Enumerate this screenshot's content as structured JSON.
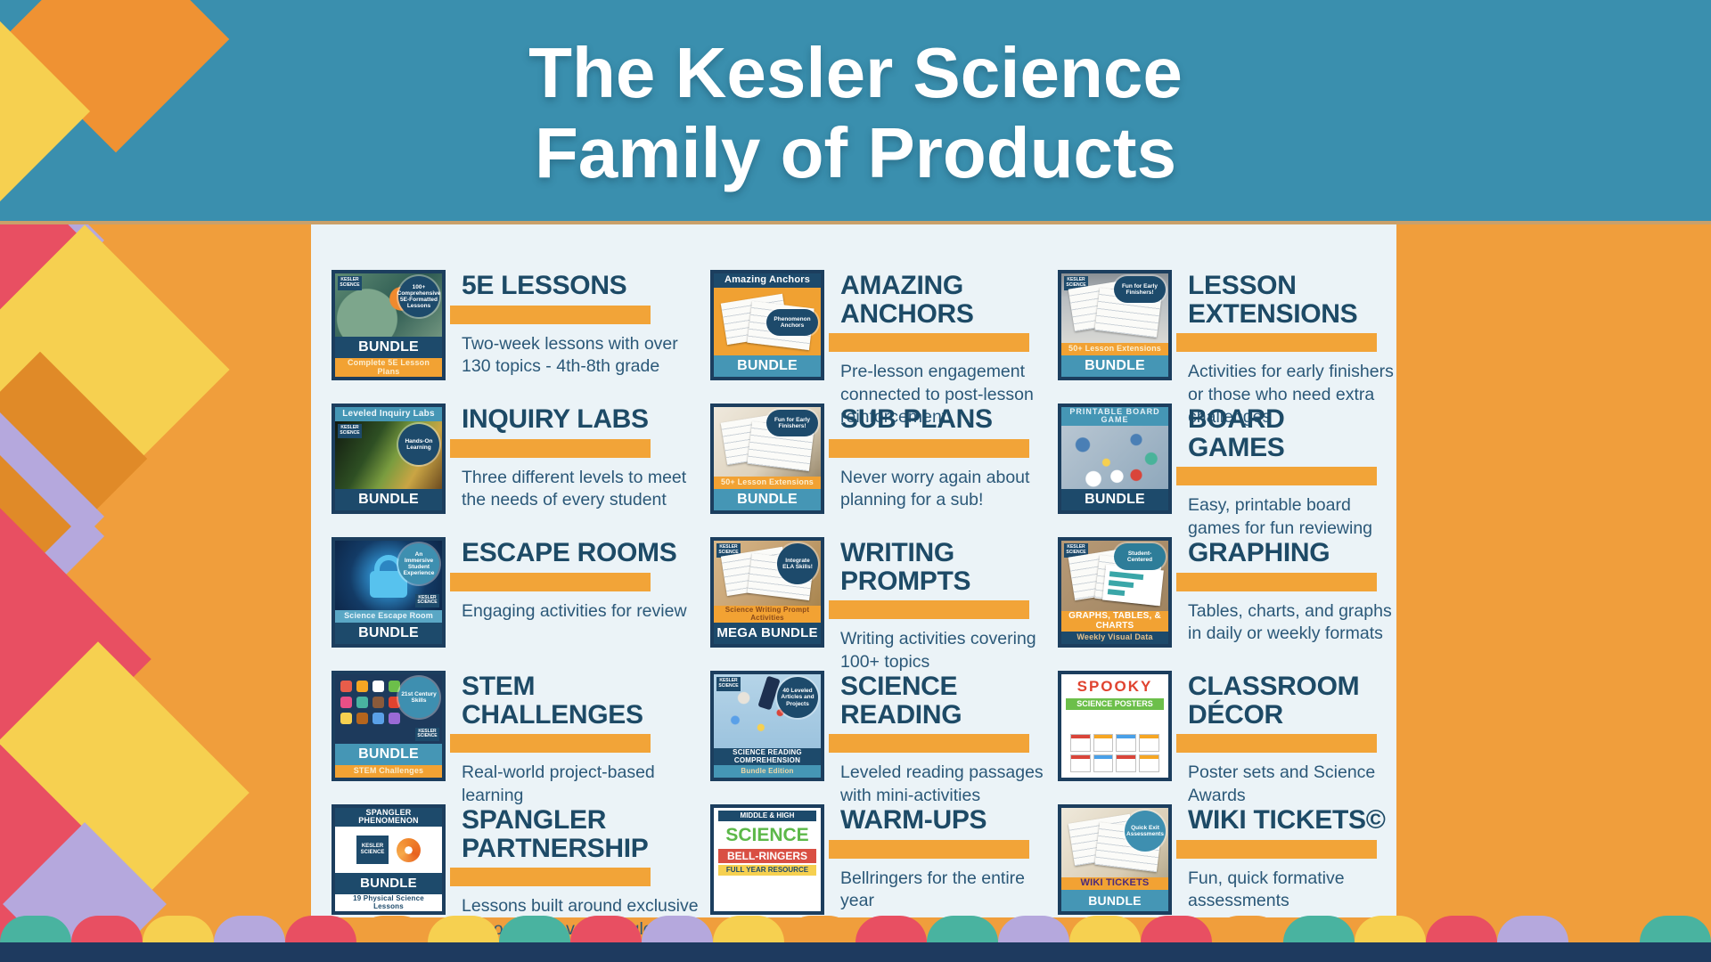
{
  "palette": {
    "header_bg": "#3a8fae",
    "page_bg": "#f09e3c",
    "panel_bg": "#ebf3f7",
    "card_title": "#1d4a66",
    "desc": "#2b5878",
    "accent_bar": "#f2a438",
    "card_border": "#1c3e5e",
    "navy": "#1d4a6b",
    "teal": "#4596b5",
    "bottom_bar": "#1e3a5f",
    "lavender": "#b5a8dd",
    "red": "#e84f62",
    "yellow": "#f6d050",
    "green": "#49b3a0"
  },
  "header": {
    "line1": "The Kesler Science",
    "line2": "Family of Products"
  },
  "products": [
    {
      "title": "5E LESSONS",
      "description": "Two-week lessons with over 130 topics - 4th-8th grade",
      "thumb": {
        "bg": "radial-gradient(circle at 62% 40%, #f08a2e 0 15%, rgba(0,0,0,0) 16%), radial-gradient(circle at 30% 72%, #7da68c 0 34%, rgba(0,0,0,0) 35%), linear-gradient(135deg, #5d8a73, #2e5b52 55%, #71957f)",
        "logo": "KESLER SCIENCE",
        "logo_pos": "tl",
        "badge": {
          "text": "100+ Comprehensive 5E-Formatted Lessons",
          "bg": "#1d4a6b",
          "color": "#ffffff",
          "shape": "circle",
          "pos": "tr"
        },
        "strips": [
          {
            "text": "BUNDLE",
            "bg": "#1d4a6b",
            "color": "#ffffff",
            "size": 16,
            "weight": 800
          },
          {
            "text": "Complete 5E Lesson Plans",
            "bg": "#f2a233",
            "color": "#fceecf",
            "size": 9,
            "weight": 600
          }
        ]
      }
    },
    {
      "title": "AMAZING\nANCHORS",
      "description": "Pre-lesson engagement connected to post-lesson reinforcement",
      "thumb": {
        "bg": "#f0a132",
        "papers": true,
        "header": {
          "text": "Amazing Anchors",
          "bg": "#1d4a6b",
          "color": "#ffffff",
          "size": 11,
          "weight": 700
        },
        "badge": {
          "text": "Phenomenon Anchors",
          "bg": "#1d4a6b",
          "color": "#ffffff",
          "shape": "oval",
          "pos": "r"
        },
        "strips": [
          {
            "text": "BUNDLE",
            "bg": "#4596b5",
            "color": "#ffffff",
            "size": 16,
            "weight": 800
          }
        ]
      }
    },
    {
      "title": "LESSON\nEXTENSIONS",
      "description": "Activities for early finishers or those who need extra challenges",
      "thumb": {
        "bg": "linear-gradient(180deg,#8a8f94,#b9bec2 35%,#d8d8d4)",
        "papers": true,
        "logo": "KESLER SCIENCE",
        "logo_pos": "tl",
        "badge": {
          "text": "Fun for Early Finishers!",
          "bg": "#1d4a6b",
          "color": "#ffffff",
          "shape": "oval",
          "pos": "tr"
        },
        "strips": [
          {
            "text": "50+ Lesson Extensions",
            "bg": "#f2a233",
            "color": "#fceecf",
            "size": 9,
            "weight": 600
          },
          {
            "text": "BUNDLE",
            "bg": "#4596b5",
            "color": "#ffffff",
            "size": 16,
            "weight": 800
          }
        ]
      }
    },
    {
      "title": "INQUIRY LABS",
      "description": "Three different levels to meet the needs of every student",
      "thumb": {
        "bg": "linear-gradient(120deg,#10180f,#2e4f23 35%,#7a9c3f 55%,#caa544 75%,#6b4a1f)",
        "logo": "KESLER SCIENCE",
        "logo_pos": "tl",
        "header": {
          "text": "Leveled Inquiry Labs",
          "bg": "#4596b5",
          "color": "#eef6fa",
          "size": 10,
          "weight": 600
        },
        "badge": {
          "text": "Hands-On Learning",
          "bg": "#1d4a6b",
          "color": "#ffffff",
          "shape": "circle",
          "pos": "tr"
        },
        "strips": [
          {
            "text": "BUNDLE",
            "bg": "#1d4a6b",
            "color": "#ffffff",
            "size": 16,
            "weight": 800
          }
        ]
      }
    },
    {
      "title": "SUB PLANS",
      "description": "Never worry again about planning for a sub!",
      "thumb": {
        "bg": "radial-gradient(circle at 46% 60%, #e8872e 0 9%, rgba(0,0,0,0) 10%), linear-gradient(135deg,#efe9dd,#ddd2bd 60%,#9a8a6e)",
        "papers": true,
        "badge": {
          "text": "Fun for Early Finishers!",
          "bg": "#1d4a6b",
          "color": "#ffffff",
          "shape": "oval",
          "pos": "tr"
        },
        "strips": [
          {
            "text": "50+ Lesson Extensions",
            "bg": "#f2a233",
            "color": "#fceecf",
            "size": 9,
            "weight": 600
          },
          {
            "text": "BUNDLE",
            "bg": "#4596b5",
            "color": "#ffffff",
            "size": 16,
            "weight": 800
          }
        ]
      }
    },
    {
      "title": "BOARD\nGAMES",
      "description": "Easy, printable board games for fun reviewing",
      "thumb": {
        "bg": "radial-gradient(circle at 20% 30%, #4a7fb5 0 7%, rgba(0,0,0,0) 8%), radial-gradient(circle at 70% 22%, #4a7fb5 0 6%, rgba(0,0,0,0) 7%), radial-gradient(circle at 42% 58%, #f6d050 0 5%, rgba(0,0,0,0) 6%), radial-gradient(circle at 84% 52%, #49b39a 0 6%, rgba(0,0,0,0) 7%), radial-gradient(circle at 30% 84%, #ffffff 0 8%, rgba(0,0,0,0) 9%), radial-gradient(circle at 52% 80%, #ffffff 0 8%, rgba(0,0,0,0) 9%), radial-gradient(circle at 70% 78%, #d9453a 0 6%, rgba(0,0,0,0) 7%), linear-gradient(135deg,#b8c6d2,#8fa8bc)",
        "header": {
          "text": "PRINTABLE BOARD GAME",
          "bg": "#4596b5",
          "color": "#e4f0f6",
          "size": 9,
          "weight": 600,
          "ls": 1
        },
        "strips": [
          {
            "text": "BUNDLE",
            "bg": "#1d4a6b",
            "color": "#ffffff",
            "size": 16,
            "weight": 800
          }
        ]
      }
    },
    {
      "title": "ESCAPE ROOMS",
      "description": "Engaging activities for review",
      "thumb": {
        "bg": "radial-gradient(circle at 50% 52%, #2c86c2 0 26%, #133b66 60%, #0d2648)",
        "padlock": true,
        "logo": "KESLER SCIENCE",
        "logo_pos": "br",
        "badge": {
          "text": "An Immersive Student Experience",
          "bg": "#3e8fb0",
          "color": "#ffffff",
          "shape": "circle",
          "pos": "tr"
        },
        "strips": [
          {
            "text": "Science Escape Room",
            "bg": "#5aa7c5",
            "color": "#e8f4fa",
            "size": 9,
            "weight": 600
          },
          {
            "text": "BUNDLE",
            "bg": "#1d4a6b",
            "color": "#ffffff",
            "size": 16,
            "weight": 800
          }
        ]
      }
    },
    {
      "title": "WRITING\nPROMPTS",
      "description": "Writing activities covering 100+ topics",
      "thumb": {
        "bg": "linear-gradient(125deg,#d9b88a,#c4a071 55%,#a8854f)",
        "papers": true,
        "logo": "KESLER SCIENCE",
        "logo_pos": "tl",
        "badge": {
          "text": "Integrate ELA Skills!",
          "bg": "#1d4a6b",
          "color": "#ffffff",
          "shape": "circle",
          "pos": "tr"
        },
        "strips": [
          {
            "text": "Science Writing Prompt Activities",
            "bg": "#f2a233",
            "color": "#8a4a1a",
            "size": 8,
            "weight": 700
          },
          {
            "text": "MEGA BUNDLE",
            "bg": "#1d4a6b",
            "color": "#ffffff",
            "size": 15,
            "weight": 800
          }
        ]
      }
    },
    {
      "title": "GRAPHING",
      "description": "Tables, charts, and graphs in daily or weekly formats",
      "thumb": {
        "bg": "linear-gradient(135deg,#b79a77,#a08460)",
        "papers": true,
        "chart": true,
        "logo": "KESLER SCIENCE",
        "logo_pos": "tl",
        "badge": {
          "text": "Student-Centered",
          "bg": "#2e7d99",
          "color": "#ffffff",
          "shape": "oval",
          "pos": "tr"
        },
        "strips": [
          {
            "text": "GRAPHS, TABLES, & CHARTS",
            "bg": "#f2a233",
            "color": "#ffffff",
            "size": 10,
            "weight": 800
          },
          {
            "text": "Weekly Visual Data",
            "bg": "#1d4a6b",
            "color": "#e3c08b",
            "size": 9,
            "weight": 600
          }
        ]
      }
    },
    {
      "title": "STEM\nCHALLENGES",
      "description": "Real-world project-based learning",
      "thumb": {
        "bg": "#1d3a5c",
        "icon_grid": [
          "#e85d4a",
          "#f6a623",
          "#ffffff",
          "#6cbf4a",
          "#e84f86",
          "#49b3a0",
          "#8a5a3b",
          "#e0432f",
          "#f6d050",
          "#b5651d",
          "#5aa0e8",
          "#9a6ad6"
        ],
        "logo": "KESLER SCIENCE",
        "logo_pos": "br",
        "badge": {
          "text": "21st Century Skills",
          "bg": "#3e8fb0",
          "color": "#ffffff",
          "shape": "circle",
          "pos": "tr"
        },
        "strips": [
          {
            "text": "BUNDLE",
            "bg": "#4596b5",
            "color": "#ffffff",
            "size": 16,
            "weight": 800
          },
          {
            "text": "STEM Challenges",
            "bg": "#f2a233",
            "color": "#fceecf",
            "size": 9,
            "weight": 600
          }
        ]
      }
    },
    {
      "title": "SCIENCE\nREADING",
      "description": "Leveled reading passages with mini-activities",
      "thumb": {
        "bg": "radial-gradient(circle at 28% 32%, #e8e3da 0 6%, rgba(0,0,0,0) 7%), radial-gradient(circle at 62% 52%, #d9453a 0 4%, rgba(0,0,0,0) 5%), radial-gradient(circle at 44% 72%, #f6d050 0 4%, rgba(0,0,0,0) 5%), radial-gradient(circle at 76% 34%, #49b39a 0 4%, rgba(0,0,0,0) 5%), radial-gradient(circle at 20% 62%, #5aa0e8 0 4%, rgba(0,0,0,0) 5%), linear-gradient(180deg,#b5d4e8,#9cc3de)",
        "microscope": true,
        "logo": "KESLER SCIENCE",
        "logo_pos": "tl",
        "badge": {
          "text": "40 Leveled Articles and Projects",
          "bg": "#1d4a6b",
          "color": "#ffffff",
          "shape": "circle",
          "pos": "tr"
        },
        "strips": [
          {
            "text": "SCIENCE READING COMPREHENSION",
            "bg": "#1d4a6b",
            "color": "#ffffff",
            "size": 8,
            "weight": 800
          },
          {
            "text": "Bundle Edition",
            "bg": "#4596b5",
            "color": "#f0d9a8",
            "size": 8,
            "weight": 600
          }
        ]
      }
    },
    {
      "title": "CLASSROOM\nDÉCOR",
      "description": "Poster sets and Science Awards",
      "thumb": {
        "bg": "#ffffff",
        "art_lines": [
          {
            "text": "SPOOKY",
            "bg": "#ffffff",
            "color": "#e0432f",
            "size": 17,
            "weight": 900,
            "ls": 2
          },
          {
            "text": "SCIENCE POSTERS",
            "bg": "#6cbf4a",
            "color": "#ffffff",
            "size": 9,
            "weight": 800
          }
        ],
        "mini_grid": true,
        "strips": []
      }
    },
    {
      "title": "SPANGLER\nPARTNERSHIP",
      "description": "Lessons built around exclusive videos by Steve Spangler",
      "thumb": {
        "bg": "#ffffff",
        "header": {
          "text": "SPANGLER PHENOMENON",
          "bg": "#1d4a6b",
          "color": "#ffffff",
          "size": 9,
          "weight": 800
        },
        "logo_row": "KESLER SCIENCE",
        "strips": [
          {
            "text": "BUNDLE",
            "bg": "#1d4a6b",
            "color": "#ffffff",
            "size": 15,
            "weight": 800
          },
          {
            "text": "19 Physical Science Lessons",
            "bg": "#ffffff",
            "color": "#1d4a6b",
            "size": 8,
            "weight": 700
          }
        ]
      }
    },
    {
      "title": "WARM-UPS",
      "description": "Bellringers for the entire year",
      "thumb": {
        "bg": "#ffffff",
        "art_lines": [
          {
            "text": "MIDDLE & HIGH",
            "bg": "#1d4a6b",
            "color": "#ffffff",
            "size": 8,
            "weight": 700
          },
          {
            "text": "SCIENCE",
            "bg": "#ffffff",
            "color": "#5cb849",
            "size": 21,
            "weight": 900
          },
          {
            "text": "BELL-RINGERS",
            "bg": "#d94f43",
            "color": "#ffffff",
            "size": 12,
            "weight": 800
          },
          {
            "text": "FULL YEAR RESOURCE",
            "bg": "#f6d050",
            "color": "#1d4a6b",
            "size": 8,
            "weight": 800
          }
        ],
        "strips": []
      }
    },
    {
      "title": "WIKI TICKETS©",
      "description": "Fun, quick formative assessments",
      "thumb": {
        "bg": "linear-gradient(135deg,#efe9db,#d9cdb5 70%,#b5a98c)",
        "papers": true,
        "badge": {
          "text": "Quick Exit Assessments",
          "bg": "#3e8fb0",
          "color": "#ffffff",
          "shape": "circle",
          "pos": "tr"
        },
        "strips": [
          {
            "text": "WIKI TICKETS",
            "bg": "#f2a233",
            "color": "#4a2a7a",
            "size": 11,
            "weight": 800
          },
          {
            "text": "BUNDLE",
            "bg": "#4596b5",
            "color": "#ffffff",
            "size": 14,
            "weight": 800
          }
        ]
      }
    }
  ],
  "scallop_colors": [
    "#49b3a0",
    "#e84f62",
    "#f6d050",
    "#b5a8dd",
    "#e84f62",
    "#f09e3c",
    "#f6d050",
    "#49b3a0",
    "#e84f62",
    "#b5a8dd",
    "#f6d050",
    "#f09e3c",
    "#e84f62",
    "#49b3a0",
    "#b5a8dd",
    "#f6d050",
    "#e84f62",
    "#f09e3c",
    "#49b3a0",
    "#f6d050",
    "#e84f62",
    "#b5a8dd",
    "#f09e3c",
    "#49b3a0"
  ]
}
